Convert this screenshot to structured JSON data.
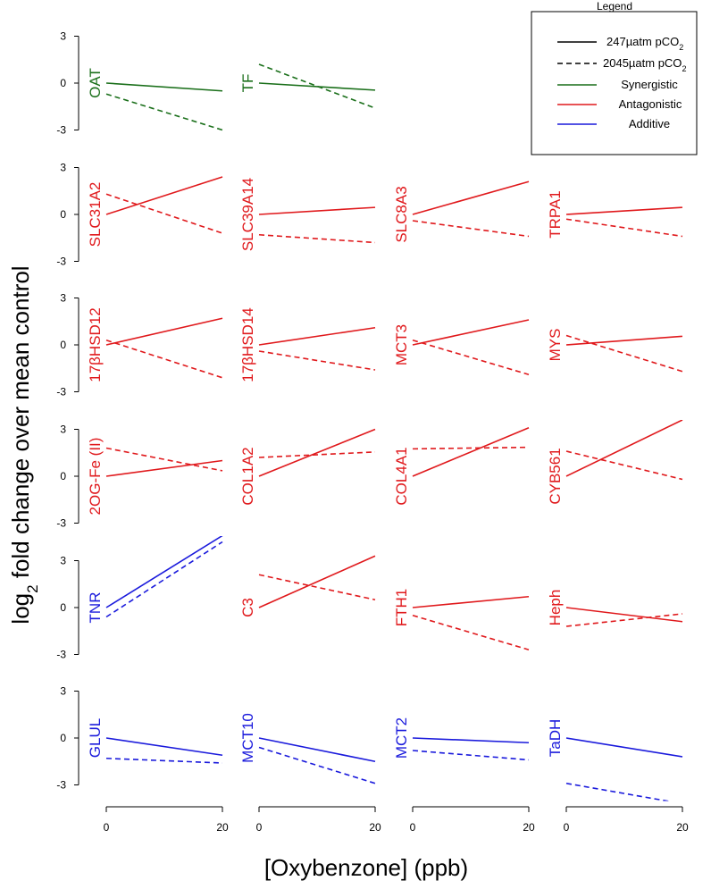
{
  "chart_data": {
    "type": "line",
    "layout": "small-multiples grid, 6 rows x 4 columns",
    "xlabel": "[Oxybenzone] (ppb)",
    "ylabel_prefix": "log",
    "ylabel_subscript": "2",
    "ylabel_suffix": " fold change over mean control",
    "x": [
      0,
      20
    ],
    "x_ticks": [
      "0",
      "20"
    ],
    "y_ticks": [
      "3",
      "0",
      "-3"
    ],
    "ylim": [
      -3,
      3
    ],
    "colors": {
      "Synergistic": "#1a6f1a",
      "Antagonistic": "#e0191c",
      "Additive": "#1a1adc"
    },
    "legend": {
      "title": "Legend",
      "position": "top-right",
      "line_entries": [
        {
          "label_prefix": "247µatm pCO",
          "label_sub": "2",
          "style": "solid"
        },
        {
          "label_prefix": "2045µatm pCO",
          "label_sub": "2",
          "style": "dashed"
        }
      ],
      "category_entries": [
        {
          "label": "Synergistic",
          "category": "Synergistic"
        },
        {
          "label": "Antagonistic",
          "category": "Antagonistic"
        },
        {
          "label": "Additive",
          "category": "Additive"
        }
      ]
    },
    "panels": [
      {
        "row": 0,
        "col": 0,
        "gene": "OAT",
        "category": "Synergistic",
        "low_pco2": [
          0,
          -0.5
        ],
        "high_pco2": [
          -0.7,
          -3.0
        ]
      },
      {
        "row": 0,
        "col": 1,
        "gene": "TF",
        "category": "Synergistic",
        "low_pco2": [
          0,
          -0.45
        ],
        "high_pco2": [
          1.2,
          -1.6
        ]
      },
      {
        "row": 1,
        "col": 0,
        "gene": "SLC31A2",
        "category": "Antagonistic",
        "low_pco2": [
          0,
          2.4
        ],
        "high_pco2": [
          1.3,
          -1.2
        ]
      },
      {
        "row": 1,
        "col": 1,
        "gene": "SLC39A14",
        "category": "Antagonistic",
        "low_pco2": [
          0,
          0.45
        ],
        "high_pco2": [
          -1.3,
          -1.8
        ]
      },
      {
        "row": 1,
        "col": 2,
        "gene": "SLC8A3",
        "category": "Antagonistic",
        "low_pco2": [
          0,
          2.1
        ],
        "high_pco2": [
          -0.4,
          -1.4
        ]
      },
      {
        "row": 1,
        "col": 3,
        "gene": "TRPA1",
        "category": "Antagonistic",
        "low_pco2": [
          0,
          0.45
        ],
        "high_pco2": [
          -0.3,
          -1.4
        ]
      },
      {
        "row": 2,
        "col": 0,
        "gene": "17βHSD12",
        "category": "Antagonistic",
        "low_pco2": [
          0,
          1.7
        ],
        "high_pco2": [
          0.3,
          -2.1
        ]
      },
      {
        "row": 2,
        "col": 1,
        "gene": "17βHSD14",
        "category": "Antagonistic",
        "low_pco2": [
          0,
          1.1
        ],
        "high_pco2": [
          -0.4,
          -1.6
        ]
      },
      {
        "row": 2,
        "col": 2,
        "gene": "MCT3",
        "category": "Antagonistic",
        "low_pco2": [
          0,
          1.6
        ],
        "high_pco2": [
          0.3,
          -1.9
        ]
      },
      {
        "row": 2,
        "col": 3,
        "gene": "MYS",
        "category": "Antagonistic",
        "low_pco2": [
          0,
          0.55
        ],
        "high_pco2": [
          0.6,
          -1.7
        ]
      },
      {
        "row": 3,
        "col": 0,
        "gene": "2OG-Fe (II)",
        "category": "Antagonistic",
        "low_pco2": [
          0,
          1.0
        ],
        "high_pco2": [
          1.8,
          0.35
        ]
      },
      {
        "row": 3,
        "col": 1,
        "gene": "COL1A2",
        "category": "Antagonistic",
        "low_pco2": [
          0,
          3.0
        ],
        "high_pco2": [
          1.2,
          1.55
        ]
      },
      {
        "row": 3,
        "col": 2,
        "gene": "COL4A1",
        "category": "Antagonistic",
        "low_pco2": [
          0,
          3.1
        ],
        "high_pco2": [
          1.75,
          1.85
        ]
      },
      {
        "row": 3,
        "col": 3,
        "gene": "CYB561",
        "category": "Antagonistic",
        "low_pco2": [
          0,
          3.6
        ],
        "high_pco2": [
          1.6,
          -0.2
        ]
      },
      {
        "row": 4,
        "col": 0,
        "gene": "TNR",
        "category": "Additive",
        "low_pco2": [
          0,
          4.6
        ],
        "high_pco2": [
          -0.6,
          4.2
        ]
      },
      {
        "row": 4,
        "col": 1,
        "gene": "C3",
        "category": "Antagonistic",
        "low_pco2": [
          0,
          3.3
        ],
        "high_pco2": [
          2.1,
          0.5
        ]
      },
      {
        "row": 4,
        "col": 2,
        "gene": "FTH1",
        "category": "Antagonistic",
        "low_pco2": [
          0,
          0.7
        ],
        "high_pco2": [
          -0.5,
          -2.7
        ]
      },
      {
        "row": 4,
        "col": 3,
        "gene": "Heph",
        "category": "Antagonistic",
        "low_pco2": [
          0,
          -0.9
        ],
        "high_pco2": [
          -1.2,
          -0.4
        ]
      },
      {
        "row": 5,
        "col": 0,
        "gene": "GLUL",
        "category": "Additive",
        "low_pco2": [
          0,
          -1.1
        ],
        "high_pco2": [
          -1.3,
          -1.6
        ]
      },
      {
        "row": 5,
        "col": 1,
        "gene": "MCT10",
        "category": "Additive",
        "low_pco2": [
          0,
          -1.5
        ],
        "high_pco2": [
          -0.6,
          -2.9
        ]
      },
      {
        "row": 5,
        "col": 2,
        "gene": "MCT2",
        "category": "Additive",
        "low_pco2": [
          0,
          -0.3
        ],
        "high_pco2": [
          -0.8,
          -1.4
        ]
      },
      {
        "row": 5,
        "col": 3,
        "gene": "TaDH",
        "category": "Additive",
        "low_pco2": [
          0,
          -1.2
        ],
        "high_pco2": [
          -2.9,
          -4.2
        ]
      }
    ]
  }
}
